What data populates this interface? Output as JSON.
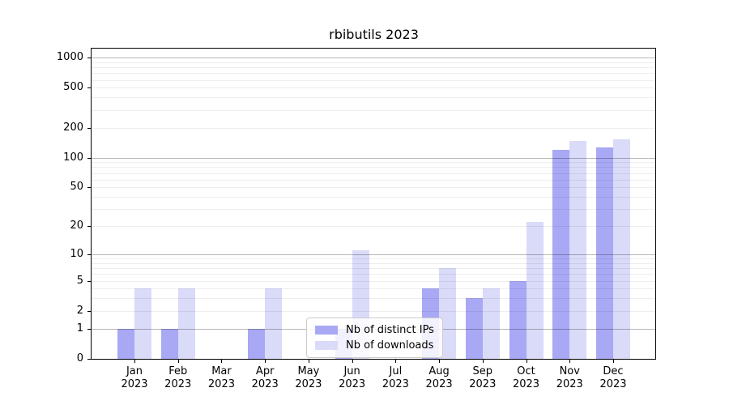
{
  "chart_data": {
    "type": "bar",
    "title": "rbibutils 2023",
    "categories": [
      "Jan",
      "Feb",
      "Mar",
      "Apr",
      "May",
      "Jun",
      "Jul",
      "Aug",
      "Sep",
      "Oct",
      "Nov",
      "Dec"
    ],
    "year": "2023",
    "series": [
      {
        "name": "Nb of distinct IPs",
        "color": "#a8a8f4",
        "values": [
          1,
          1,
          0,
          1,
          0,
          1,
          0,
          4,
          3,
          5,
          120,
          126
        ]
      },
      {
        "name": "Nb of downloads",
        "color": "#dadaf9",
        "values": [
          4,
          4,
          0,
          4,
          0,
          11,
          0,
          7,
          4,
          22,
          146,
          154
        ]
      }
    ],
    "xlabel": "",
    "ylabel": "",
    "yscale": "log1p",
    "yticks": [
      0,
      1,
      2,
      5,
      10,
      20,
      50,
      100,
      200,
      500,
      1000
    ],
    "ylim": [
      0,
      1230
    ],
    "grid": {
      "major_gridlines_at": [
        1,
        10,
        100,
        1000
      ],
      "minor_gridlines": "2-9 per decade",
      "vertical_gridlines": false
    },
    "legend": {
      "location": "lower center-left, inside plot"
    }
  }
}
